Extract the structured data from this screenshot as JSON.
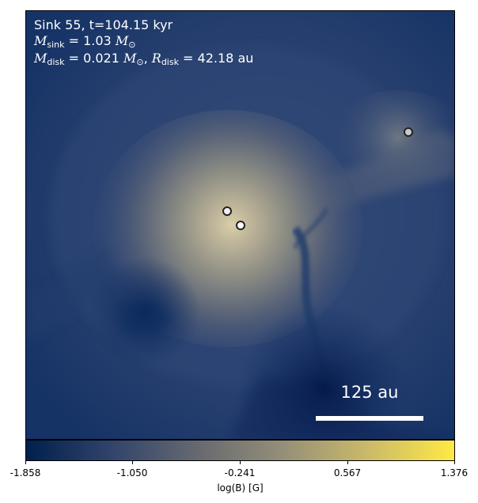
{
  "annotation": {
    "line1": "Sink 55, t=104.15 kyr",
    "msink_symbol": "M",
    "msink_sub": "sink",
    "msink_value": " = 1.03 ",
    "msun_symbol": "M",
    "msun_sub": "⊙",
    "mdisk_symbol": "M",
    "mdisk_sub": "disk",
    "mdisk_value": " = 0.021 ",
    "msun2_symbol": "M",
    "msun2_sub": "⊙",
    "sep": ", ",
    "rdisk_symbol": "R",
    "rdisk_sub": "disk",
    "rdisk_value": " = 42.18 au"
  },
  "scalebar": {
    "label": "125 au"
  },
  "sinks": [
    {
      "name": "sink-particle-upper-right"
    },
    {
      "name": "sink-particle-center-left"
    },
    {
      "name": "sink-particle-center"
    }
  ],
  "colorbar": {
    "label": "log(B) [G]",
    "ticks": [
      "-1.858",
      "-1.050",
      "-0.241",
      "0.567",
      "1.376"
    ],
    "colors": [
      "#00204c",
      "#31446b",
      "#666970",
      "#958f78",
      "#cbba69",
      "#ffe945"
    ]
  }
}
